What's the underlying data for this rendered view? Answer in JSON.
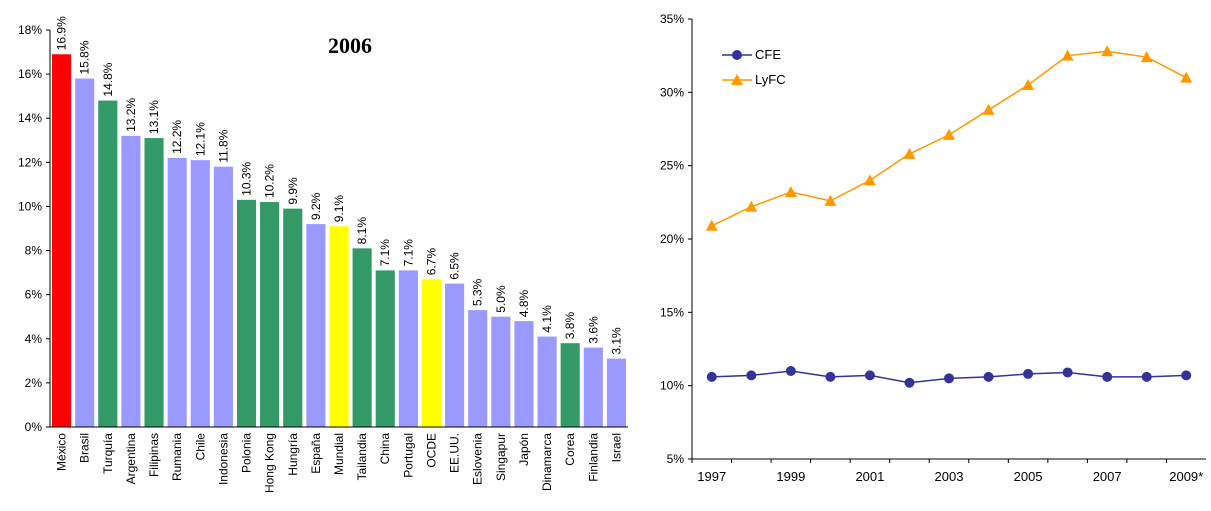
{
  "chart_data": [
    {
      "type": "bar",
      "title": "2006",
      "categories": [
        "México",
        "Brasil",
        "Turquía",
        "Argentina",
        "Filipinas",
        "Rumania",
        "Chile",
        "Indonesia",
        "Polonia",
        "Hong Kong",
        "Hungría",
        "España",
        "Mundial",
        "Tailandia",
        "China",
        "Portugal",
        "OCDE",
        "EE.UU.",
        "Eslovenia",
        "Singapur",
        "Japón",
        "Dinamarca",
        "Corea",
        "Finlandia",
        "Israel"
      ],
      "values": [
        16.9,
        15.8,
        14.8,
        13.2,
        13.1,
        12.2,
        12.1,
        11.8,
        10.3,
        10.2,
        9.9,
        9.2,
        9.1,
        8.1,
        7.1,
        7.1,
        6.7,
        6.5,
        5.3,
        5.0,
        4.8,
        4.1,
        3.8,
        3.6,
        3.1
      ],
      "value_labels": [
        "16.9%",
        "15.8%",
        "14.8%",
        "13.2%",
        "13.1%",
        "12.2%",
        "12.1%",
        "11.8%",
        "10.3%",
        "10.2%",
        "9.9%",
        "9.2%",
        "9.1%",
        "8.1%",
        "7.1%",
        "7.1%",
        "6.7%",
        "6.5%",
        "5.3%",
        "5.0%",
        "4.8%",
        "4.1%",
        "3.8%",
        "3.6%",
        "3.1%"
      ],
      "colors": [
        "#ff0000",
        "#9999ff",
        "#339966",
        "#9999ff",
        "#339966",
        "#9999ff",
        "#9999ff",
        "#9999ff",
        "#339966",
        "#339966",
        "#339966",
        "#9999ff",
        "#ffff00",
        "#339966",
        "#339966",
        "#9999ff",
        "#ffff00",
        "#9999ff",
        "#9999ff",
        "#9999ff",
        "#9999ff",
        "#9999ff",
        "#339966",
        "#9999ff",
        "#9999ff"
      ],
      "ylim": [
        0,
        18
      ],
      "yticks": [
        {
          "value": 0,
          "label": "0%"
        },
        {
          "value": 2,
          "label": "2%"
        },
        {
          "value": 4,
          "label": "4%"
        },
        {
          "value": 6,
          "label": "6%"
        },
        {
          "value": 8,
          "label": "8%"
        },
        {
          "value": 10,
          "label": "10%"
        },
        {
          "value": 12,
          "label": "12%"
        },
        {
          "value": 14,
          "label": "14%"
        },
        {
          "value": 16,
          "label": "16%"
        },
        {
          "value": 18,
          "label": "18%"
        }
      ],
      "grid": false
    },
    {
      "type": "line",
      "categories": [
        "1997",
        null,
        "1999",
        null,
        "2001",
        null,
        "2003",
        null,
        "2005",
        null,
        "2007",
        null,
        "2009*"
      ],
      "series": [
        {
          "name": "CFE",
          "color": "#333399",
          "marker": "circle",
          "values": [
            10.6,
            10.7,
            11.0,
            10.6,
            10.7,
            10.2,
            10.5,
            10.6,
            10.8,
            10.9,
            10.6,
            10.6,
            10.7
          ]
        },
        {
          "name": "LyFC",
          "color": "#ff9900",
          "marker": "triangle",
          "values": [
            20.9,
            22.2,
            23.2,
            22.6,
            24.0,
            25.8,
            27.1,
            28.8,
            30.5,
            32.5,
            32.8,
            32.4,
            31.0
          ]
        }
      ],
      "ylim": [
        5,
        35
      ],
      "yticks": [
        {
          "value": 5,
          "label": "5%"
        },
        {
          "value": 10,
          "label": "10%"
        },
        {
          "value": 15,
          "label": "15%"
        },
        {
          "value": 20,
          "label": "20%"
        },
        {
          "value": 25,
          "label": "25%"
        },
        {
          "value": 30,
          "label": "30%"
        },
        {
          "value": 35,
          "label": "35%"
        }
      ],
      "grid": false,
      "legend": "upper-left"
    }
  ]
}
